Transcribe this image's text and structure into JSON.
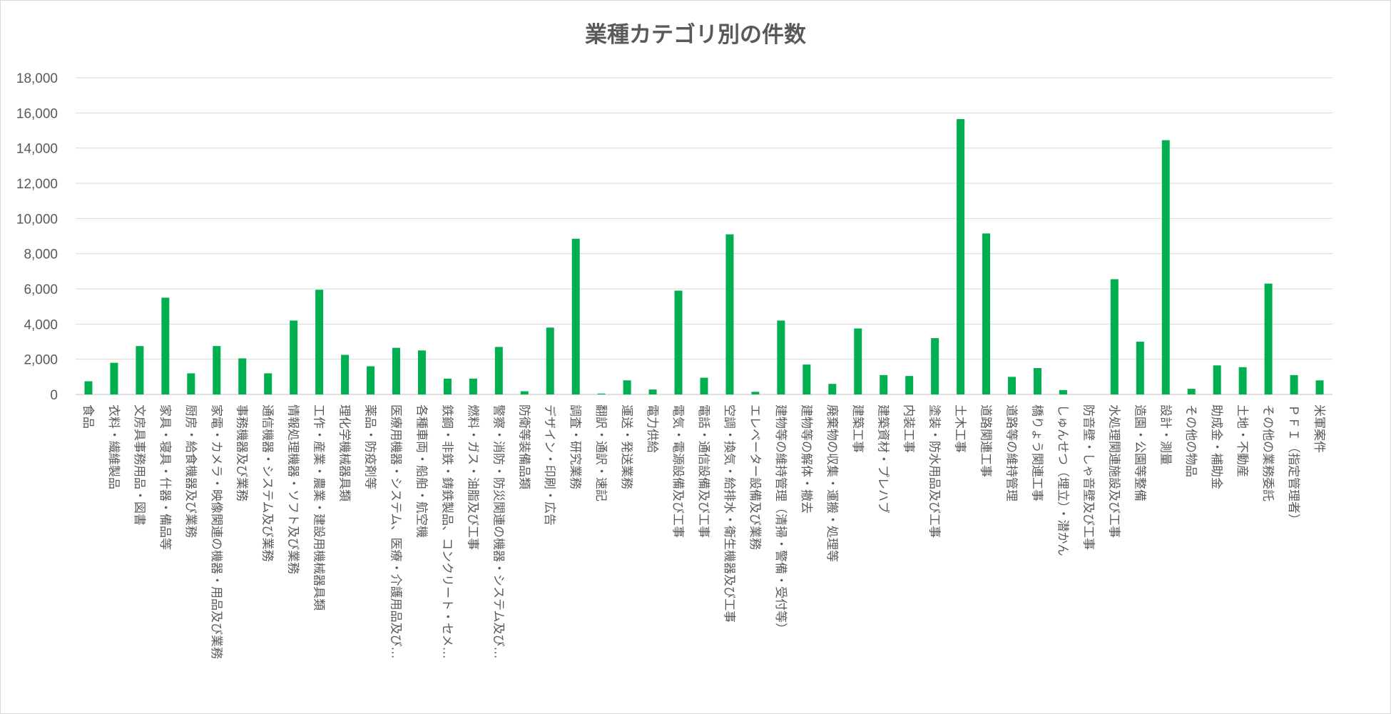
{
  "chart_data": {
    "type": "bar",
    "title": "業種カテゴリ別の件数",
    "xlabel": "",
    "ylabel": "",
    "ylim": [
      0,
      18000
    ],
    "yticks": [
      0,
      2000,
      4000,
      6000,
      8000,
      10000,
      12000,
      14000,
      16000,
      18000
    ],
    "ytick_labels": [
      "0",
      "2,000",
      "4,000",
      "6,000",
      "8,000",
      "10,000",
      "12,000",
      "14,000",
      "16,000",
      "18,000"
    ],
    "grid": true,
    "legend": "none",
    "bar_color": "#00b050",
    "categories": [
      "食品",
      "衣料・繊維製品",
      "文房具事務用品・図書",
      "家具・寝具・什器・備品等",
      "厨房・給食機器及び業務",
      "家電・カメラ・映像関連の機器・用品及び業務",
      "事務機器及び業務",
      "通信機器・システム及び業務",
      "情報処理機器・ソフト及び業務",
      "工作・産業・農業・建設用機械器具類",
      "理化学機械器具類",
      "薬品・防疫剤等",
      "医療用機器・システム、医療・介護用品及び…",
      "各種車両・船舶・航空機",
      "鉄鋼・非鉄・鋳鉄製品、コンクリート・セメ…",
      "燃料・ガス・油脂及び工事",
      "警察・消防・防災関連の機器・システム及び…",
      "防衛等装備品類",
      "デザイン・印刷・広告",
      "調査・研究業務",
      "翻訳・通訳・速記",
      "運送・発送業務",
      "電力供給",
      "電気・電源設備及び工事",
      "電話・通信設備及び工事",
      "空調・換気・給排水・衛生機器及び工事",
      "エレベーター設備及び業務",
      "建物等の維持管理（清掃・警備・受付等）",
      "建物等の解体・撤去",
      "廃棄物の収集・運搬・処理等",
      "建築工事",
      "建築資材・プレハブ",
      "内装工事",
      "塗装・防水用品及び工事",
      "土木工事",
      "道路関連工事",
      "道路等の維持管理",
      "橋りょう関連工事",
      "しゅんせつ（埋立）・潜かん",
      "防音壁・しゃ音壁及び工事",
      "水処理関連施設及び工事",
      "造園・公園等整備",
      "設計・測量",
      "その他の物品",
      "助成金・補助金",
      "土地・不動産",
      "その他の業務委託",
      "ＰＦＩ（指定管理者）",
      "米軍案件"
    ],
    "values": [
      750,
      1800,
      2750,
      5500,
      1200,
      2750,
      2050,
      1200,
      4200,
      5950,
      2250,
      1600,
      2650,
      2500,
      900,
      900,
      2700,
      180,
      3800,
      8850,
      50,
      800,
      280,
      5900,
      950,
      9100,
      150,
      4200,
      1700,
      600,
      3750,
      1100,
      1050,
      3200,
      15650,
      9150,
      1000,
      1500,
      250,
      0,
      6550,
      3000,
      14450,
      320,
      1650,
      1550,
      6300,
      1100,
      800
    ]
  }
}
